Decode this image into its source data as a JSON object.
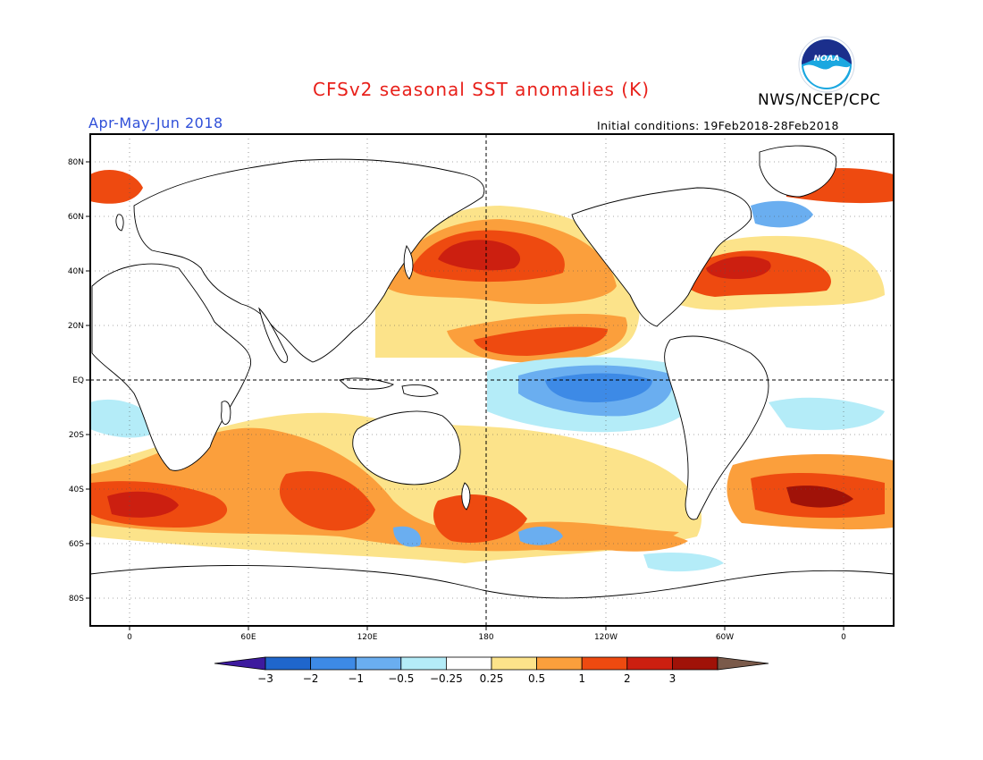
{
  "header": {
    "title": "CFSv2 seasonal SST anomalies (K)",
    "agency": "NWS/NCEP/CPC",
    "season": "Apr-May-Jun 2018",
    "initial_conditions": "Initial conditions: 19Feb2018-28Feb2018",
    "logo_text": "NOAA"
  },
  "axes": {
    "lat_labels": [
      "80N",
      "60N",
      "40N",
      "20N",
      "EQ",
      "20S",
      "40S",
      "60S",
      "80S"
    ],
    "lon_labels": [
      "0",
      "60E",
      "120E",
      "180",
      "120W",
      "60W",
      "0"
    ]
  },
  "colorbar": {
    "labels": [
      "-3",
      "-2",
      "-1",
      "-0.5",
      "-0.25",
      "0.25",
      "0.5",
      "1",
      "2",
      "3"
    ],
    "colors": [
      "#3d1a9e",
      "#1f66cc",
      "#3d8ae6",
      "#6aaef0",
      "#b4ecf8",
      "#ffffff",
      "#fce38a",
      "#fb9f3c",
      "#ee4a10",
      "#cc1f10",
      "#a01208",
      "#7a5a4a"
    ]
  },
  "colors": {
    "title": "#e8201a",
    "season": "#2f4fd8",
    "land_outline": "#000000"
  }
}
